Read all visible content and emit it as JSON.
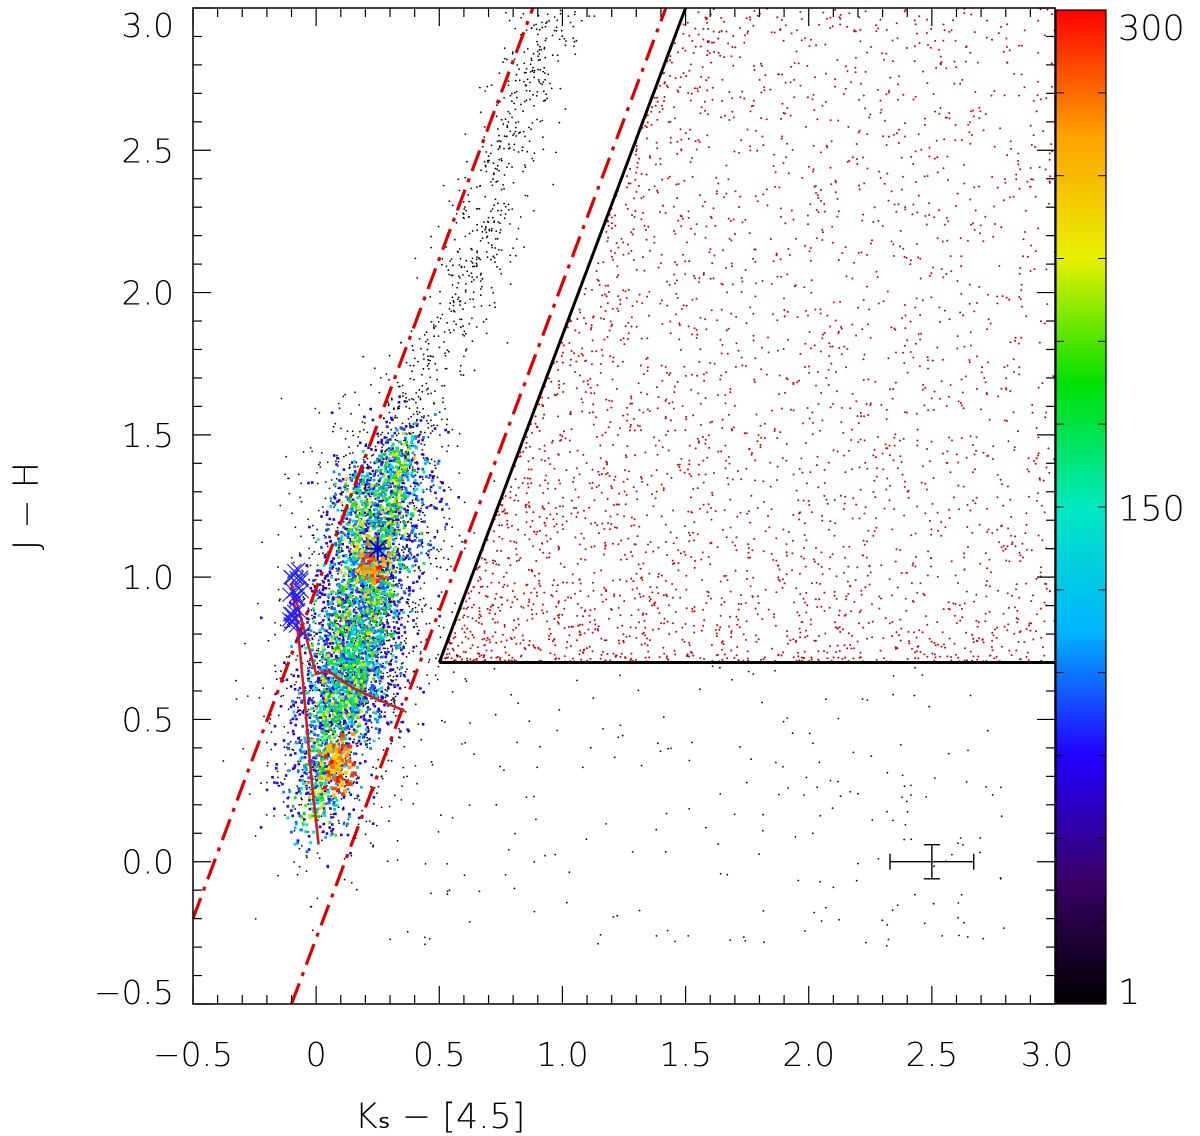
{
  "chart_data": {
    "type": "scatter",
    "title": "",
    "xlabel": "Kₛ − [4.5]",
    "ylabel": "J − H",
    "xlim": [
      -0.5,
      3.0
    ],
    "ylim": [
      -0.5,
      3.0
    ],
    "x_ticks": [
      {
        "value": -0.5,
        "label": "−0.5"
      },
      {
        "value": 0.0,
        "label": "0"
      },
      {
        "value": 0.5,
        "label": "0.5"
      },
      {
        "value": 1.0,
        "label": "1.0"
      },
      {
        "value": 1.5,
        "label": "1.5"
      },
      {
        "value": 2.0,
        "label": "2.0"
      },
      {
        "value": 2.5,
        "label": "2.5"
      },
      {
        "value": 3.0,
        "label": "3.0"
      }
    ],
    "y_ticks": [
      {
        "value": -0.5,
        "label": "−0.5"
      },
      {
        "value": 0.0,
        "label": "0.0"
      },
      {
        "value": 0.5,
        "label": "0.5"
      },
      {
        "value": 1.0,
        "label": "1.0"
      },
      {
        "value": 1.5,
        "label": "1.5"
      },
      {
        "value": 2.0,
        "label": "2.0"
      },
      {
        "value": 2.5,
        "label": "2.5"
      },
      {
        "value": 3.0,
        "label": "3.0"
      }
    ],
    "colorbar": {
      "min": 1,
      "max": 300,
      "tick_labels": [
        {
          "value": 1,
          "label": "1"
        },
        {
          "value": 150,
          "label": "150"
        },
        {
          "value": 300,
          "label": "300"
        }
      ],
      "colormap": "rainbow",
      "colors": [
        "#000000",
        "#3a0068",
        "#2200ff",
        "#00b4ff",
        "#00e8c0",
        "#00e000",
        "#e8f000",
        "#ffa000",
        "#ff0000"
      ]
    },
    "density_ridges": [
      {
        "start": [
          0.0,
          0.15
        ],
        "end": [
          0.2,
          1.35
        ],
        "peak": [
          0.09,
          0.34
        ]
      },
      {
        "start": [
          0.15,
          0.5
        ],
        "end": [
          0.35,
          1.45
        ],
        "peak": [
          0.22,
          1.05
        ]
      }
    ],
    "ysyo_region": {
      "color": "#cc0000",
      "bounds": {
        "x_min": 0.5,
        "y_min": 0.7,
        "x_max": 3.0,
        "y_max": 3.0
      }
    },
    "boundary_lines": [
      {
        "style": "solid",
        "color": "#000000",
        "points": [
          [
            0.5,
            0.7
          ],
          [
            1.5,
            3.0
          ]
        ]
      },
      {
        "style": "solid",
        "color": "#000000",
        "points": [
          [
            0.5,
            0.7
          ],
          [
            3.0,
            0.7
          ]
        ]
      },
      {
        "style": "dash-dot",
        "color": "#dd0000",
        "points": [
          [
            -0.5,
            -0.2
          ],
          [
            0.88,
            3.0
          ]
        ]
      },
      {
        "style": "dash-dot",
        "color": "#dd0000",
        "points": [
          [
            -0.1,
            -0.5
          ],
          [
            1.42,
            3.0
          ]
        ]
      }
    ],
    "intrinsic_locus": {
      "color": "#cc2020",
      "points": [
        [
          0.01,
          0.06
        ],
        [
          -0.02,
          0.3
        ],
        [
          -0.05,
          0.6
        ],
        [
          -0.07,
          0.78
        ],
        [
          -0.1,
          0.98
        ],
        [
          0.0,
          0.66
        ],
        [
          0.05,
          0.67
        ],
        [
          0.15,
          0.61
        ],
        [
          0.25,
          0.57
        ],
        [
          0.36,
          0.53
        ]
      ]
    },
    "markers": [
      {
        "type": "asterisk",
        "color": "#0000cc",
        "x": 0.25,
        "y": 1.1
      },
      {
        "type": "x-cluster",
        "color": "#2222ff",
        "x": -0.08,
        "y": 0.92,
        "x_spread": 0.06,
        "y_spread": 0.12
      }
    ],
    "error_bar": {
      "x": 2.5,
      "y": 0.0,
      "xerr": 0.17,
      "yerr": 0.06
    }
  }
}
